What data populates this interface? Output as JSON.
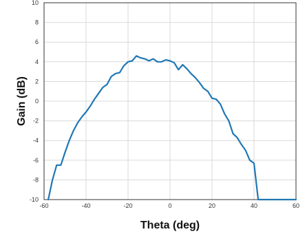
{
  "chart_data": {
    "type": "line",
    "xlabel": "Theta (deg)",
    "ylabel": "Gain (dB)",
    "xlim": [
      -60,
      60
    ],
    "ylim": [
      -10,
      10
    ],
    "x_ticks": [
      -60,
      -40,
      -20,
      0,
      20,
      40,
      60
    ],
    "y_ticks": [
      -10,
      -8,
      -6,
      -4,
      -2,
      0,
      2,
      4,
      6,
      8,
      10
    ],
    "grid": true,
    "line_color": "#1f77b4",
    "series": [
      {
        "x": [
          -58,
          -56,
          -54,
          -52,
          -50,
          -48,
          -46,
          -44,
          -42,
          -40,
          -38,
          -36,
          -34,
          -32,
          -30,
          -28,
          -26,
          -24,
          -22,
          -20,
          -18,
          -16,
          -14,
          -12,
          -10,
          -8,
          -6,
          -4,
          -2,
          0,
          2,
          4,
          6,
          8,
          10,
          12,
          14,
          16,
          18,
          20,
          22,
          24,
          26,
          28,
          30,
          32,
          34,
          36,
          38,
          40,
          42,
          44,
          46,
          48,
          50,
          52,
          54,
          56,
          58,
          60
        ],
        "y": [
          -10,
          -8,
          -6.5,
          -6.5,
          -5.2,
          -4,
          -3,
          -2.2,
          -1.6,
          -1.1,
          -0.5,
          0.2,
          0.8,
          1.4,
          1.7,
          2.5,
          2.8,
          2.9,
          3.6,
          4.0,
          4.1,
          4.6,
          4.4,
          4.3,
          4.1,
          4.3,
          4.0,
          4.0,
          4.2,
          4.1,
          3.9,
          3.2,
          3.7,
          3.3,
          2.8,
          2.4,
          1.9,
          1.3,
          1.0,
          0.3,
          0.2,
          -0.3,
          -1.3,
          -2.0,
          -3.3,
          -3.7,
          -4.4,
          -5.0,
          -6.0,
          -6.3,
          -10,
          -10,
          -10,
          -10,
          -10,
          -10,
          -10,
          -10,
          -10,
          -10
        ]
      }
    ]
  }
}
